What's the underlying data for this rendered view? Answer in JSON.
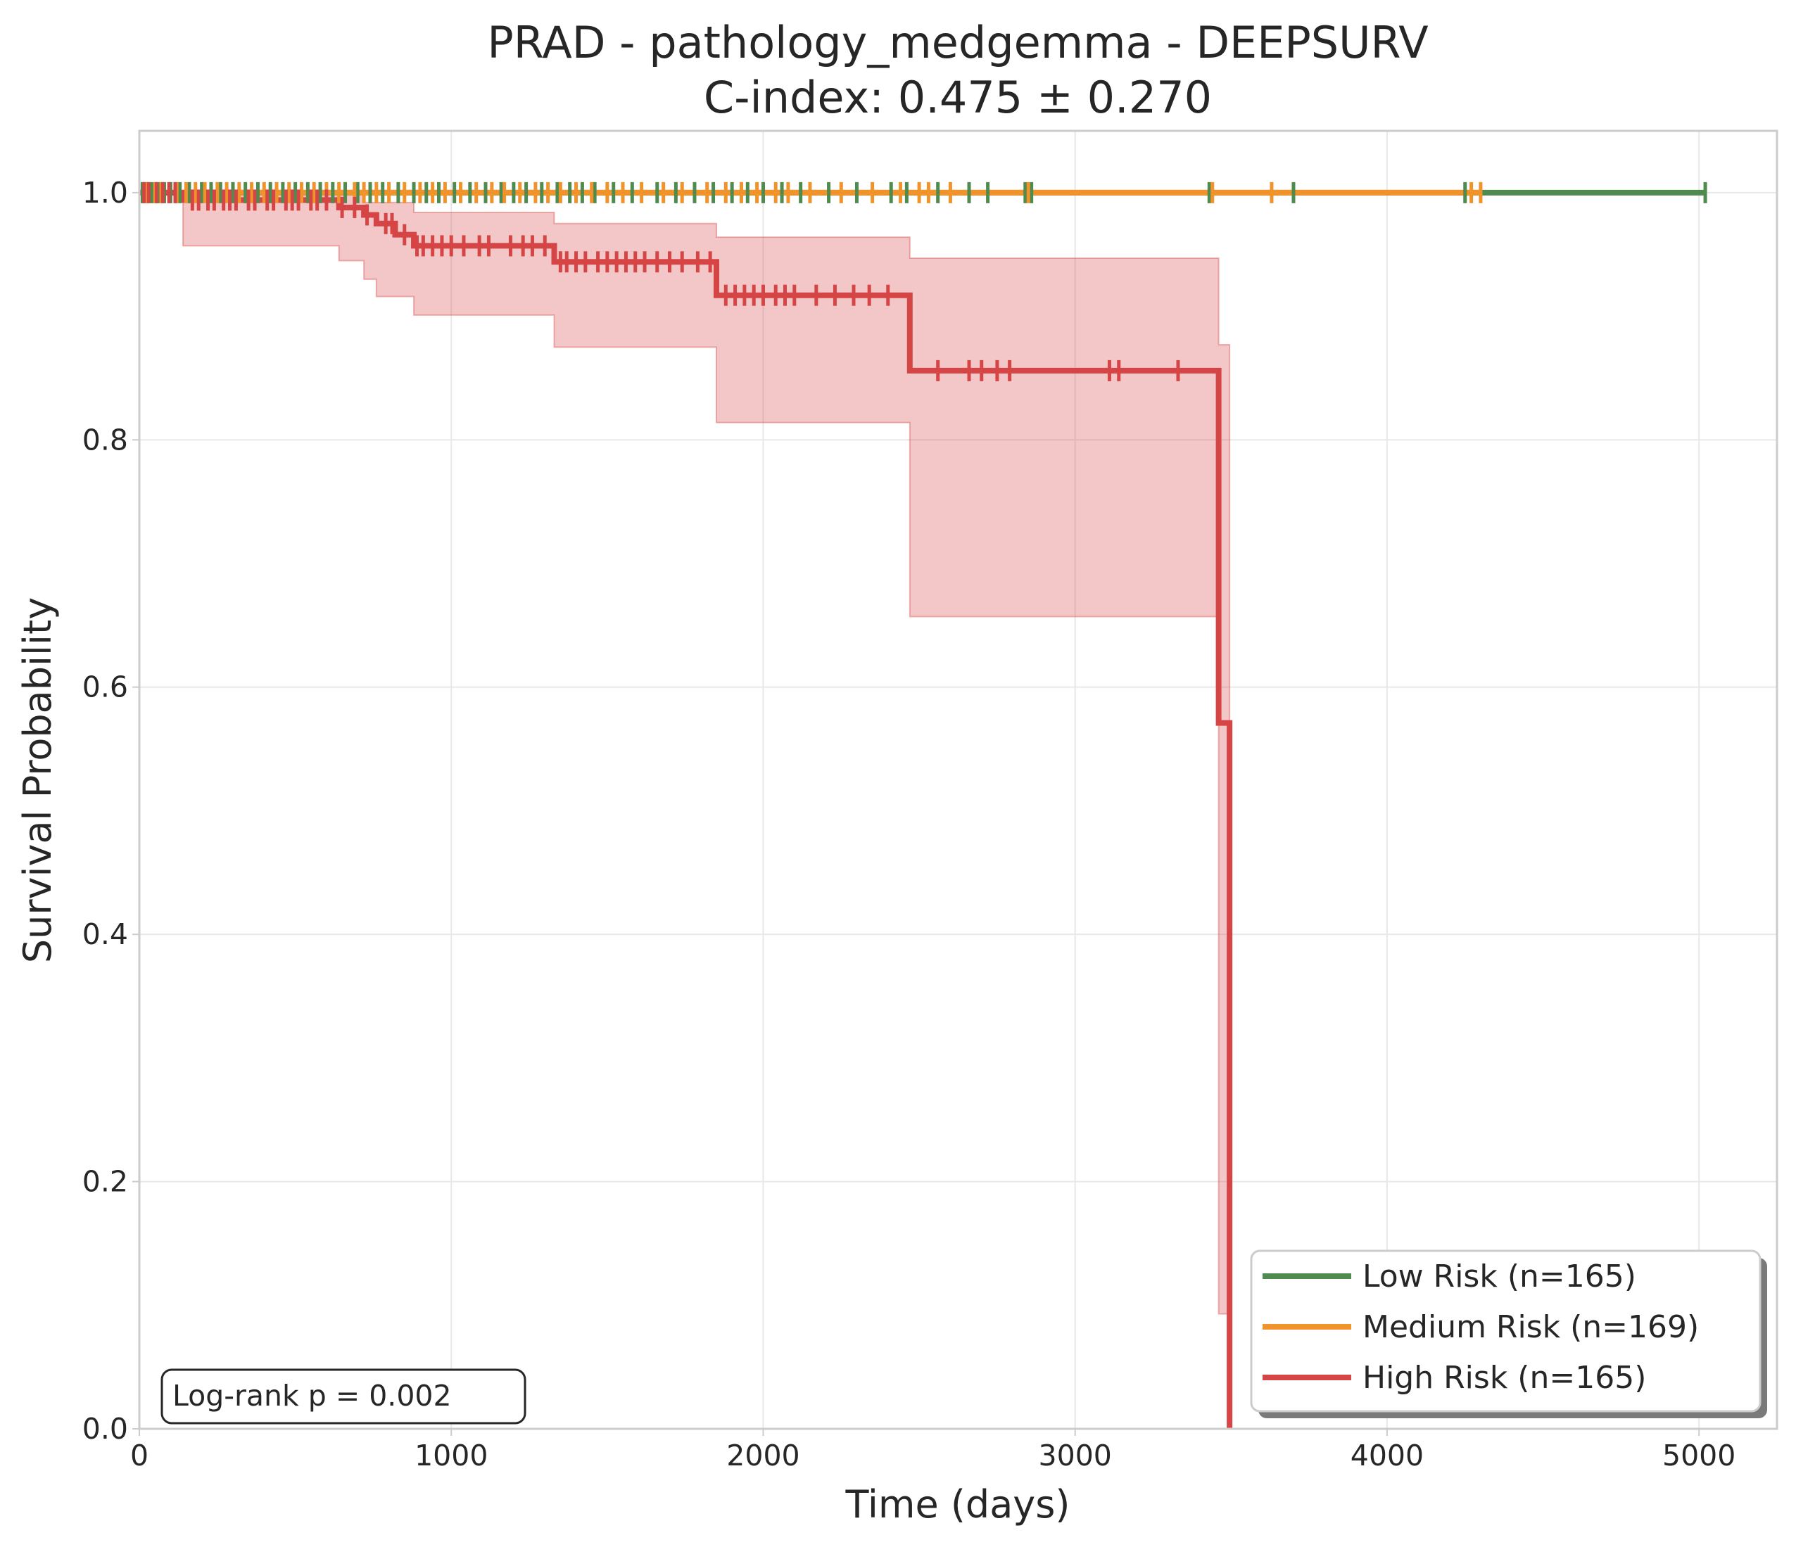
{
  "chart_data": {
    "type": "line",
    "subtype": "kaplan-meier",
    "title": "PRAD - pathology_medgemma - DEEPSURV",
    "subtitle": "C-index: 0.475 ± 0.270",
    "xlabel": "Time (days)",
    "ylabel": "Survival Probability",
    "xlim": [
      0,
      5250
    ],
    "ylim": [
      0,
      1.05
    ],
    "xticks": [
      0,
      1000,
      2000,
      3000,
      4000,
      5000
    ],
    "yticks": [
      0.0,
      0.2,
      0.4,
      0.6,
      0.8,
      1.0
    ],
    "xtick_labels": [
      "0",
      "1000",
      "2000",
      "3000",
      "4000",
      "5000"
    ],
    "ytick_labels": [
      "0.0",
      "0.2",
      "0.4",
      "0.6",
      "0.8",
      "1.0"
    ],
    "grid": true,
    "legend_position": "bottom-right",
    "annotation": "Log-rank p = 0.002",
    "series": [
      {
        "name": "Low Risk (n=165)",
        "color": "#4f8a4f",
        "steps": [
          [
            0,
            1.0
          ],
          [
            5020,
            1.0
          ]
        ],
        "censors": [
          10,
          25,
          40,
          60,
          80,
          100,
          130,
          160,
          200,
          230,
          260,
          300,
          340,
          380,
          420,
          460,
          500,
          540,
          580,
          620,
          660,
          700,
          740,
          780,
          830,
          880,
          920,
          960,
          1010,
          1060,
          1110,
          1160,
          1200,
          1240,
          1290,
          1340,
          1380,
          1420,
          1460,
          1520,
          1580,
          1660,
          1720,
          1780,
          1840,
          1900,
          1950,
          2000,
          2060,
          2120,
          2210,
          2300,
          2410,
          2460,
          2560,
          2660,
          2720,
          2840,
          2860,
          3430,
          3700,
          4250,
          5020
        ]
      },
      {
        "name": "Medium Risk (n=169)",
        "color": "#f0932b",
        "steps": [
          [
            0,
            1.0
          ],
          [
            4300,
            1.0
          ]
        ],
        "censors": [
          20,
          50,
          70,
          120,
          150,
          180,
          210,
          250,
          280,
          320,
          360,
          400,
          440,
          480,
          520,
          560,
          600,
          640,
          690,
          720,
          760,
          800,
          850,
          900,
          940,
          980,
          1030,
          1080,
          1130,
          1170,
          1220,
          1270,
          1310,
          1350,
          1400,
          1450,
          1500,
          1550,
          1610,
          1680,
          1740,
          1820,
          1880,
          1930,
          1980,
          2040,
          2080,
          2150,
          2250,
          2350,
          2440,
          2500,
          2530,
          2600,
          2850,
          3440,
          3630,
          4270,
          4300
        ]
      },
      {
        "name": "High Risk (n=165)",
        "color": "#d64545",
        "steps": [
          [
            0,
            1.0
          ],
          [
            140,
            0.994
          ],
          [
            640,
            0.988
          ],
          [
            720,
            0.982
          ],
          [
            760,
            0.975
          ],
          [
            820,
            0.966
          ],
          [
            880,
            0.957
          ],
          [
            1330,
            0.944
          ],
          [
            1850,
            0.917
          ],
          [
            2470,
            0.856
          ],
          [
            3460,
            0.571
          ],
          [
            3495,
            0.571
          ],
          [
            3495,
            0.0
          ]
        ],
        "ci_upper": [
          [
            0,
            1.0
          ],
          [
            640,
            1.0
          ],
          [
            720,
            0.992
          ],
          [
            880,
            0.984
          ],
          [
            1330,
            0.975
          ],
          [
            1850,
            0.964
          ],
          [
            2470,
            0.947
          ],
          [
            3460,
            0.877
          ],
          [
            3495,
            0.877
          ]
        ],
        "ci_lower": [
          [
            0,
            1.0
          ],
          [
            140,
            0.957
          ],
          [
            640,
            0.945
          ],
          [
            720,
            0.93
          ],
          [
            760,
            0.916
          ],
          [
            880,
            0.901
          ],
          [
            1330,
            0.875
          ],
          [
            1850,
            0.814
          ],
          [
            2470,
            0.657
          ],
          [
            3460,
            0.093
          ],
          [
            3495,
            0.093
          ]
        ],
        "censors": [
          15,
          30,
          55,
          75,
          95,
          115,
          170,
          190,
          220,
          240,
          270,
          290,
          310,
          350,
          370,
          410,
          430,
          470,
          490,
          510,
          550,
          570,
          600,
          650,
          690,
          730,
          790,
          810,
          850,
          890,
          910,
          940,
          970,
          1000,
          1040,
          1090,
          1120,
          1190,
          1230,
          1260,
          1300,
          1350,
          1370,
          1400,
          1430,
          1470,
          1500,
          1530,
          1560,
          1590,
          1620,
          1660,
          1700,
          1740,
          1790,
          1830,
          1880,
          1910,
          1940,
          1970,
          2000,
          2040,
          2070,
          2100,
          2170,
          2230,
          2290,
          2340,
          2400,
          2560,
          2660,
          2700,
          2750,
          2790,
          3110,
          3140,
          3330
        ]
      }
    ]
  }
}
